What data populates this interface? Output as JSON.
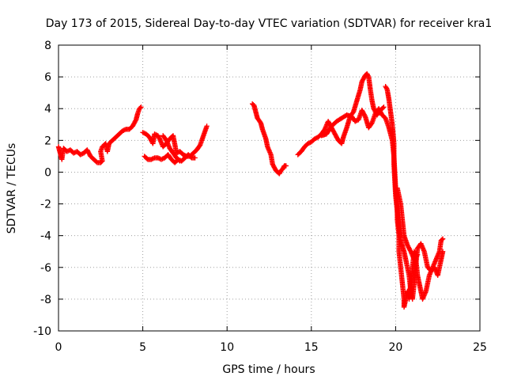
{
  "chart_data": {
    "type": "scatter",
    "title": "Day 173 of 2015, Sidereal Day-to-day VTEC variation (SDTVAR) for receiver kra1",
    "xlabel": "GPS time / hours",
    "ylabel": "SDTVAR / TECUs",
    "xlim": [
      0,
      25
    ],
    "ylim": [
      -10,
      8
    ],
    "xticks": [
      0,
      5,
      10,
      15,
      20,
      25
    ],
    "yticks": [
      -10,
      -8,
      -6,
      -4,
      -2,
      0,
      2,
      4,
      6,
      8
    ],
    "xtick_labels": [
      "0",
      "5",
      "10",
      "15",
      "20",
      "25"
    ],
    "ytick_labels": [
      "-10",
      "-8",
      "-6",
      "-4",
      "-2",
      "0",
      "2",
      "4",
      "6",
      "8"
    ],
    "grid": true,
    "marker": "plus",
    "color": "#ff0000",
    "series": [
      {
        "segments": [
          [
            [
              0.0,
              1.6
            ],
            [
              0.1,
              1.2
            ],
            [
              0.2,
              0.8
            ],
            [
              0.3,
              1.5
            ],
            [
              0.5,
              1.3
            ],
            [
              0.7,
              1.4
            ],
            [
              0.9,
              1.2
            ],
            [
              1.1,
              1.3
            ],
            [
              1.3,
              1.1
            ],
            [
              1.5,
              1.2
            ],
            [
              1.7,
              1.4
            ],
            [
              1.9,
              1.0
            ],
            [
              2.1,
              0.8
            ],
            [
              2.3,
              0.6
            ],
            [
              2.5,
              0.6
            ],
            [
              2.6,
              0.7
            ],
            [
              2.5,
              1.3
            ],
            [
              2.6,
              1.6
            ],
            [
              2.8,
              1.8
            ],
            [
              2.9,
              1.3
            ],
            [
              3.0,
              1.8
            ],
            [
              3.2,
              2.0
            ],
            [
              3.4,
              2.2
            ],
            [
              3.6,
              2.4
            ],
            [
              3.8,
              2.6
            ],
            [
              4.0,
              2.7
            ],
            [
              4.2,
              2.7
            ],
            [
              4.4,
              2.9
            ],
            [
              4.6,
              3.3
            ],
            [
              4.7,
              3.7
            ],
            [
              4.8,
              4.0
            ],
            [
              4.9,
              4.1
            ]
          ],
          [
            [
              5.0,
              2.5
            ],
            [
              5.2,
              2.4
            ],
            [
              5.4,
              2.2
            ],
            [
              5.6,
              1.8
            ],
            [
              5.7,
              2.4
            ],
            [
              5.9,
              2.3
            ],
            [
              6.0,
              2.1
            ],
            [
              6.2,
              1.6
            ],
            [
              6.4,
              1.8
            ],
            [
              6.6,
              2.1
            ],
            [
              6.8,
              2.3
            ],
            [
              7.0,
              1.2
            ],
            [
              7.2,
              1.3
            ],
            [
              7.4,
              1.1
            ],
            [
              7.6,
              1.0
            ],
            [
              7.8,
              1.0
            ],
            [
              8.0,
              1.2
            ],
            [
              8.2,
              1.4
            ],
            [
              8.4,
              1.7
            ],
            [
              8.6,
              2.3
            ],
            [
              8.8,
              2.9
            ]
          ],
          [
            [
              5.1,
              1.0
            ],
            [
              5.3,
              0.8
            ],
            [
              5.5,
              0.8
            ],
            [
              5.7,
              0.9
            ],
            [
              5.9,
              0.9
            ],
            [
              6.1,
              0.8
            ],
            [
              6.3,
              0.9
            ],
            [
              6.5,
              1.1
            ],
            [
              6.7,
              0.8
            ],
            [
              6.9,
              0.6
            ],
            [
              7.1,
              0.8
            ],
            [
              7.3,
              0.7
            ],
            [
              7.5,
              0.9
            ],
            [
              7.7,
              1.1
            ],
            [
              7.9,
              0.9
            ],
            [
              8.1,
              0.9
            ]
          ],
          [
            [
              6.2,
              2.3
            ],
            [
              6.4,
              2.0
            ],
            [
              6.6,
              1.5
            ],
            [
              6.8,
              1.2
            ],
            [
              7.0,
              0.9
            ],
            [
              7.2,
              0.7
            ]
          ],
          [
            [
              11.5,
              4.3
            ],
            [
              11.6,
              4.2
            ],
            [
              11.7,
              3.8
            ],
            [
              11.8,
              3.4
            ],
            [
              12.0,
              3.1
            ],
            [
              12.1,
              2.7
            ],
            [
              12.3,
              2.1
            ],
            [
              12.4,
              1.6
            ],
            [
              12.6,
              1.1
            ],
            [
              12.7,
              0.5
            ],
            [
              12.9,
              0.1
            ],
            [
              13.0,
              0.0
            ],
            [
              13.1,
              -0.1
            ],
            [
              13.2,
              0.1
            ],
            [
              13.3,
              0.2
            ],
            [
              13.4,
              0.4
            ],
            [
              13.5,
              0.4
            ]
          ],
          [
            [
              14.2,
              1.1
            ],
            [
              14.4,
              1.3
            ],
            [
              14.6,
              1.6
            ],
            [
              14.8,
              1.8
            ],
            [
              15.0,
              1.9
            ],
            [
              15.2,
              2.1
            ],
            [
              15.4,
              2.2
            ],
            [
              15.6,
              2.4
            ],
            [
              15.8,
              2.7
            ],
            [
              16.0,
              3.2
            ],
            [
              16.2,
              2.8
            ],
            [
              16.4,
              2.4
            ],
            [
              16.6,
              2.0
            ],
            [
              16.8,
              1.8
            ],
            [
              16.9,
              2.2
            ],
            [
              17.1,
              2.8
            ],
            [
              17.3,
              3.5
            ],
            [
              17.5,
              3.8
            ],
            [
              17.7,
              4.5
            ],
            [
              17.9,
              5.2
            ],
            [
              18.0,
              5.7
            ],
            [
              18.1,
              5.9
            ],
            [
              18.2,
              6.1
            ],
            [
              18.3,
              6.2
            ],
            [
              18.4,
              6.0
            ],
            [
              18.5,
              5.2
            ],
            [
              18.6,
              4.5
            ],
            [
              18.7,
              4.0
            ],
            [
              18.9,
              3.6
            ],
            [
              19.1,
              3.9
            ],
            [
              19.3,
              4.1
            ]
          ],
          [
            [
              15.6,
              2.3
            ],
            [
              15.9,
              2.4
            ],
            [
              16.2,
              2.9
            ],
            [
              16.5,
              3.2
            ],
            [
              16.8,
              3.4
            ],
            [
              17.1,
              3.6
            ],
            [
              17.4,
              3.5
            ],
            [
              17.6,
              3.2
            ],
            [
              17.8,
              3.3
            ],
            [
              18.0,
              3.9
            ],
            [
              18.2,
              3.5
            ],
            [
              18.4,
              2.8
            ],
            [
              18.6,
              3.1
            ],
            [
              18.8,
              3.7
            ],
            [
              19.0,
              4.0
            ],
            [
              19.2,
              3.6
            ],
            [
              19.4,
              3.4
            ],
            [
              19.6,
              2.8
            ],
            [
              19.8,
              2.0
            ],
            [
              19.9,
              1.0
            ],
            [
              20.0,
              -1.0
            ],
            [
              20.1,
              -2.0
            ],
            [
              20.1,
              -3.0
            ],
            [
              20.2,
              -4.0
            ],
            [
              20.2,
              -5.0
            ],
            [
              20.3,
              -6.0
            ],
            [
              20.4,
              -7.0
            ],
            [
              20.5,
              -8.0
            ],
            [
              20.5,
              -8.5
            ],
            [
              20.6,
              -8.0
            ],
            [
              20.7,
              -7.5
            ],
            [
              20.8,
              -8.0
            ],
            [
              20.9,
              -7.0
            ],
            [
              21.0,
              -6.0
            ],
            [
              21.1,
              -5.0
            ],
            [
              21.2,
              -5.5
            ],
            [
              21.3,
              -6.5
            ],
            [
              21.4,
              -7.0
            ],
            [
              21.5,
              -7.5
            ],
            [
              21.6,
              -8.0
            ],
            [
              21.8,
              -7.5
            ],
            [
              22.0,
              -6.5
            ],
            [
              22.2,
              -6.0
            ],
            [
              22.4,
              -5.5
            ],
            [
              22.6,
              -5.0
            ],
            [
              22.7,
              -4.3
            ],
            [
              22.8,
              -4.2
            ]
          ],
          [
            [
              19.4,
              5.4
            ],
            [
              19.5,
              5.2
            ],
            [
              19.6,
              4.6
            ],
            [
              19.7,
              3.8
            ],
            [
              19.8,
              3.0
            ],
            [
              19.9,
              1.8
            ],
            [
              19.9,
              0.5
            ],
            [
              20.0,
              -1.5
            ],
            [
              20.1,
              -2.5
            ],
            [
              20.2,
              -3.5
            ],
            [
              20.3,
              -4.3
            ],
            [
              20.5,
              -5.0
            ],
            [
              20.6,
              -5.5
            ],
            [
              20.8,
              -6.5
            ],
            [
              20.9,
              -7.5
            ],
            [
              21.0,
              -8.0
            ],
            [
              21.1,
              -7.0
            ],
            [
              21.2,
              -5.8
            ],
            [
              21.3,
              -4.8
            ],
            [
              21.5,
              -4.5
            ],
            [
              21.7,
              -5.0
            ],
            [
              21.9,
              -6.0
            ],
            [
              22.1,
              -6.2
            ],
            [
              22.3,
              -6.0
            ],
            [
              22.5,
              -6.5
            ],
            [
              22.7,
              -5.5
            ],
            [
              22.8,
              -5.0
            ]
          ],
          [
            [
              20.1,
              -1.0
            ],
            [
              20.3,
              -2.0
            ],
            [
              20.4,
              -3.0
            ],
            [
              20.5,
              -4.0
            ],
            [
              20.7,
              -4.6
            ],
            [
              20.9,
              -5.0
            ],
            [
              21.1,
              -5.5
            ],
            [
              21.3,
              -5.2
            ]
          ]
        ]
      }
    ]
  }
}
